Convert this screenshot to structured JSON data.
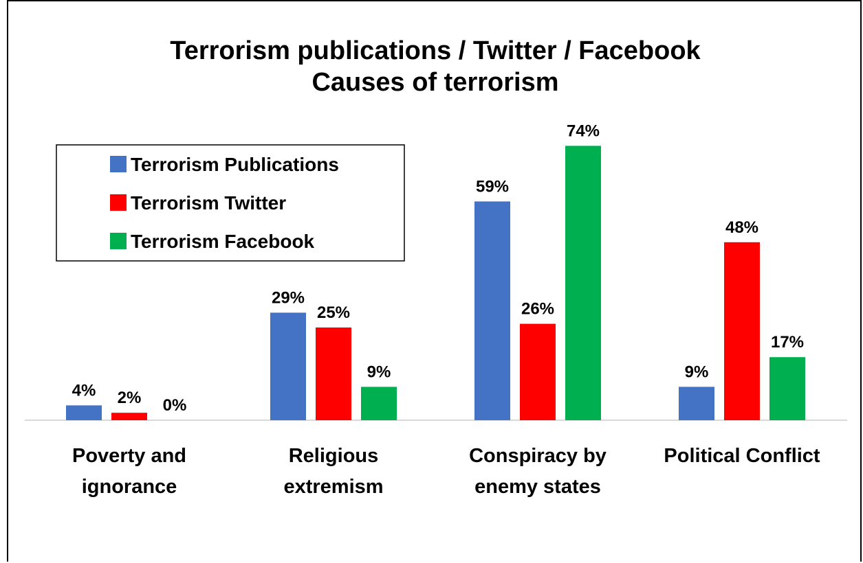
{
  "chart_data": {
    "type": "bar",
    "title": [
      "Terrorism publications / Twitter / Facebook",
      "Causes of terrorism"
    ],
    "categories": [
      [
        "Poverty and",
        "ignorance"
      ],
      [
        "Religious",
        "extremism"
      ],
      [
        "Conspiracy by",
        "enemy states"
      ],
      [
        "Political Conflict"
      ]
    ],
    "series": [
      {
        "name": "Terrorism Publications",
        "color": "#4472C4",
        "values": [
          4,
          29,
          59,
          9
        ],
        "labels": [
          "4%",
          "29%",
          "59%",
          "9%"
        ]
      },
      {
        "name": "Terrorism Twitter",
        "color": "#FF0000",
        "values": [
          2,
          25,
          26,
          48
        ],
        "labels": [
          "2%",
          "25%",
          "26%",
          "48%"
        ]
      },
      {
        "name": "Terrorism Facebook",
        "color": "#00B050",
        "values": [
          0,
          9,
          74,
          17
        ],
        "labels": [
          "0%",
          "9%",
          "74%",
          "17%"
        ]
      }
    ],
    "ylim": [
      0,
      100
    ],
    "grid": false,
    "legend": "top-left",
    "unit": "%"
  }
}
